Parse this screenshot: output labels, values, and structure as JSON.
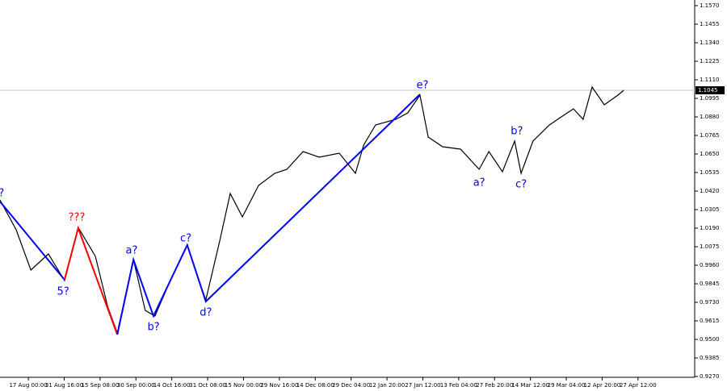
{
  "chart_data": {
    "type": "line",
    "xlim": [
      -0.79,
      18.58
    ],
    "ylim": [
      0.9265,
      1.1605
    ],
    "xticks": [
      {
        "value": 0,
        "label": "17 Aug 00:00"
      },
      {
        "value": 1,
        "label": "31 Aug 16:00"
      },
      {
        "value": 2,
        "label": "15 Sep 08:00"
      },
      {
        "value": 3,
        "label": "30 Sep 00:00"
      },
      {
        "value": 4,
        "label": "14 Oct 16:00"
      },
      {
        "value": 5,
        "label": "31 Oct 08:00"
      },
      {
        "value": 6,
        "label": "15 Nov 00:00"
      },
      {
        "value": 7,
        "label": "29 Nov 16:00"
      },
      {
        "value": 8,
        "label": "14 Dec 08:00"
      },
      {
        "value": 9,
        "label": "29 Dec 04:00"
      },
      {
        "value": 10,
        "label": "12 Jan 20:00"
      },
      {
        "value": 11,
        "label": "27 Jan 12:00"
      },
      {
        "value": 12,
        "label": "13 Feb 04:00"
      },
      {
        "value": 13,
        "label": "27 Feb 20:00"
      },
      {
        "value": 14,
        "label": "14 Mar 12:00"
      },
      {
        "value": 15,
        "label": "29 Mar 04:00"
      },
      {
        "value": 16,
        "label": "12 Apr 20:00"
      },
      {
        "value": 17,
        "label": "27 Apr 12:00"
      }
    ],
    "yticks": [
      {
        "value": 1.157,
        "label": "1.1570"
      },
      {
        "value": 1.1455,
        "label": "1.1455"
      },
      {
        "value": 1.134,
        "label": "1.1340"
      },
      {
        "value": 1.1225,
        "label": "1.1225"
      },
      {
        "value": 1.111,
        "label": "1.1110"
      },
      {
        "value": 1.0995,
        "label": "1.0995"
      },
      {
        "value": 1.088,
        "label": "1.0880"
      },
      {
        "value": 1.0765,
        "label": "1.0765"
      },
      {
        "value": 1.065,
        "label": "1.0650"
      },
      {
        "value": 1.0535,
        "label": "1.0535"
      },
      {
        "value": 1.042,
        "label": "1.0420"
      },
      {
        "value": 1.0305,
        "label": "1.0305"
      },
      {
        "value": 1.019,
        "label": "1.0190"
      },
      {
        "value": 1.0075,
        "label": "1.0075"
      },
      {
        "value": 0.996,
        "label": "0.9960"
      },
      {
        "value": 0.9845,
        "label": "0.9845"
      },
      {
        "value": 0.973,
        "label": "0.9730"
      },
      {
        "value": 0.9615,
        "label": "0.9615"
      },
      {
        "value": 0.95,
        "label": "0.9500"
      },
      {
        "value": 0.9385,
        "label": "0.9385"
      },
      {
        "value": 0.927,
        "label": "0.9270"
      }
    ],
    "current_price": 1.1045,
    "series": [
      {
        "color": "#000000",
        "x": [
          -0.79,
          -0.34,
          0.07,
          0.56,
          1.01,
          1.39,
          1.87,
          2.21,
          2.48,
          2.93,
          3.26,
          3.53,
          3.94,
          4.43,
          4.73,
          4.95,
          5.34,
          5.63,
          5.97,
          6.42,
          6.87,
          7.21,
          7.66,
          8.11,
          8.67,
          9.12,
          9.35,
          9.68,
          10.25,
          10.58,
          10.92,
          11.15,
          11.55,
          12.05,
          12.57,
          12.84,
          13.22,
          13.56,
          13.74,
          14.07,
          14.53,
          14.86,
          15.2,
          15.47,
          15.72,
          16.06,
          16.44,
          16.6
        ],
        "values": [
          1.0365,
          1.018,
          0.993,
          1.003,
          0.9865,
          1.0195,
          1.0015,
          0.9705,
          0.954,
          0.9995,
          0.968,
          0.9645,
          0.9855,
          1.0085,
          0.988,
          0.9745,
          1.0115,
          1.0405,
          1.026,
          1.0455,
          1.053,
          1.0555,
          1.0665,
          1.063,
          1.0655,
          1.053,
          1.0705,
          1.083,
          1.0865,
          1.0905,
          1.1015,
          1.0755,
          1.0695,
          1.068,
          1.0555,
          1.0665,
          1.054,
          1.073,
          1.053,
          1.073,
          1.083,
          1.088,
          1.093,
          1.0865,
          1.1065,
          1.0955,
          1.1015,
          1.1045
        ]
      }
    ],
    "waves": [
      {
        "color": "#0000ff",
        "x": [
          -0.79,
          1.01
        ],
        "values": [
          1.0355,
          0.987
        ]
      },
      {
        "color": "#ff0000",
        "x": [
          1.01,
          1.39,
          2.48
        ],
        "values": [
          0.987,
          1.019,
          0.953
        ]
      },
      {
        "color": "#0000ff",
        "x": [
          2.48,
          2.93,
          3.49,
          4.43,
          4.95,
          10.92
        ],
        "values": [
          0.953,
          0.9995,
          0.9645,
          1.0085,
          0.9735,
          1.102
        ]
      }
    ],
    "annotations": [
      {
        "text": "?",
        "x": -0.75,
        "y": 1.0405,
        "color": "#0000ff"
      },
      {
        "text": "5?",
        "x": 0.97,
        "y": 0.9795,
        "color": "#0000ff"
      },
      {
        "text": "???",
        "x": 1.35,
        "y": 1.0255,
        "color": "#ff0000"
      },
      {
        "text": "a?",
        "x": 2.88,
        "y": 1.005,
        "color": "#0000ff"
      },
      {
        "text": "b?",
        "x": 3.49,
        "y": 0.9575,
        "color": "#0000ff"
      },
      {
        "text": "c?",
        "x": 4.39,
        "y": 1.0125,
        "color": "#0000ff"
      },
      {
        "text": "d?",
        "x": 4.95,
        "y": 0.9665,
        "color": "#0000ff"
      },
      {
        "text": "e?",
        "x": 10.99,
        "y": 1.1075,
        "color": "#0000ff"
      },
      {
        "text": "a?",
        "x": 12.57,
        "y": 1.047,
        "color": "#0000ff"
      },
      {
        "text": "b?",
        "x": 13.62,
        "y": 1.079,
        "color": "#0000ff"
      },
      {
        "text": "c?",
        "x": 13.74,
        "y": 1.046,
        "color": "#0000ff"
      }
    ]
  }
}
